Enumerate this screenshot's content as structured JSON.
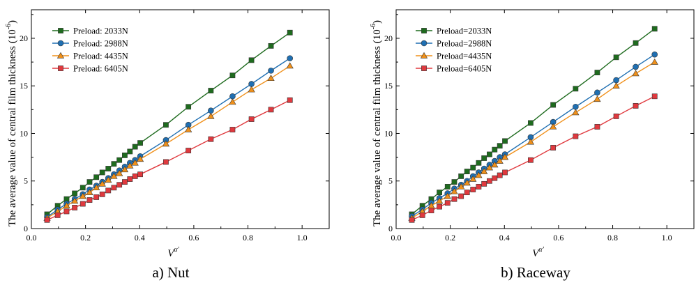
{
  "chart_data": [
    {
      "type": "line",
      "caption": "a) Nut",
      "xlabel": "V^α'",
      "ylabel": "The average  value of central film thickness (10^-6)",
      "xlim": [
        0.0,
        1.1
      ],
      "ylim": [
        0,
        23
      ],
      "xticks": [
        0.0,
        0.2,
        0.4,
        0.6,
        0.8,
        1.0
      ],
      "xtick_labels": [
        "0.0",
        "0.2",
        "0.4",
        "0.6",
        "0.8",
        "1.0"
      ],
      "yticks": [
        0,
        5,
        10,
        15,
        20
      ],
      "ytick_labels": [
        "0",
        "5",
        "10",
        "15",
        "20"
      ],
      "x": [
        0.058,
        0.097,
        0.13,
        0.16,
        0.19,
        0.215,
        0.24,
        0.262,
        0.284,
        0.305,
        0.325,
        0.345,
        0.364,
        0.383,
        0.402,
        0.497,
        0.58,
        0.663,
        0.743,
        0.813,
        0.885,
        0.955
      ],
      "series": [
        {
          "name": "Preload: 2033N",
          "color": "#1e6b1e",
          "marker": "square",
          "values": [
            1.5,
            2.4,
            3.1,
            3.7,
            4.3,
            4.9,
            5.4,
            5.9,
            6.3,
            6.8,
            7.2,
            7.7,
            8.1,
            8.6,
            9.0,
            10.9,
            12.8,
            14.5,
            16.1,
            17.7,
            19.2,
            20.6
          ]
        },
        {
          "name": "Preload: 2988N",
          "color": "#1f6fb2",
          "marker": "circle",
          "values": [
            1.2,
            2.0,
            2.6,
            3.1,
            3.6,
            4.1,
            4.5,
            4.9,
            5.3,
            5.7,
            6.1,
            6.5,
            6.9,
            7.2,
            7.6,
            9.3,
            10.9,
            12.4,
            13.9,
            15.2,
            16.6,
            17.9
          ]
        },
        {
          "name": "Preload: 4435N",
          "color": "#f0901a",
          "marker": "triangle",
          "values": [
            1.1,
            1.8,
            2.4,
            2.9,
            3.4,
            3.8,
            4.3,
            4.7,
            5.1,
            5.5,
            5.8,
            6.2,
            6.6,
            6.9,
            7.3,
            8.9,
            10.4,
            11.8,
            13.3,
            14.6,
            15.8,
            17.1
          ]
        },
        {
          "name": "Preload: 6405N",
          "color": "#e0393e",
          "marker": "square",
          "values": [
            0.9,
            1.4,
            1.8,
            2.2,
            2.6,
            3.0,
            3.3,
            3.6,
            4.0,
            4.3,
            4.6,
            4.9,
            5.2,
            5.5,
            5.7,
            7.0,
            8.2,
            9.4,
            10.4,
            11.5,
            12.5,
            13.5
          ]
        }
      ]
    },
    {
      "type": "line",
      "caption": "b) Raceway",
      "xlabel": "V^α'",
      "ylabel": "The average  value of central film thickness (10^-6)",
      "xlim": [
        0.0,
        1.1
      ],
      "ylim": [
        0,
        23
      ],
      "xticks": [
        0.0,
        0.2,
        0.4,
        0.6,
        0.8,
        1.0
      ],
      "xtick_labels": [
        "0.0",
        "0.2",
        "0.4",
        "0.6",
        "0.8",
        "1.0"
      ],
      "yticks": [
        0,
        5,
        10,
        15,
        20
      ],
      "ytick_labels": [
        "0",
        "5",
        "10",
        "15",
        "20"
      ],
      "x": [
        0.058,
        0.097,
        0.13,
        0.16,
        0.19,
        0.215,
        0.24,
        0.262,
        0.284,
        0.305,
        0.325,
        0.345,
        0.364,
        0.383,
        0.402,
        0.497,
        0.58,
        0.663,
        0.743,
        0.813,
        0.885,
        0.955
      ],
      "series": [
        {
          "name": "Preload=2033N",
          "color": "#1e6b1e",
          "marker": "square",
          "values": [
            1.5,
            2.4,
            3.1,
            3.8,
            4.4,
            4.9,
            5.5,
            6.0,
            6.4,
            6.9,
            7.4,
            7.8,
            8.3,
            8.7,
            9.2,
            11.1,
            13.0,
            14.7,
            16.4,
            18.0,
            19.5,
            21.0
          ]
        },
        {
          "name": "Preload=2988N",
          "color": "#1f6fb2",
          "marker": "circle",
          "values": [
            1.3,
            2.0,
            2.7,
            3.2,
            3.7,
            4.2,
            4.6,
            5.0,
            5.5,
            5.9,
            6.3,
            6.7,
            7.1,
            7.5,
            7.8,
            9.6,
            11.2,
            12.8,
            14.3,
            15.6,
            17.0,
            18.3
          ]
        },
        {
          "name": "Preload=4435N",
          "color": "#f0901a",
          "marker": "triangle",
          "values": [
            1.1,
            1.8,
            2.4,
            2.9,
            3.4,
            3.9,
            4.4,
            4.8,
            5.2,
            5.6,
            6.0,
            6.4,
            6.7,
            7.1,
            7.5,
            9.1,
            10.7,
            12.2,
            13.6,
            15.0,
            16.3,
            17.5
          ]
        },
        {
          "name": "Preload=6405N",
          "color": "#e0393e",
          "marker": "square",
          "values": [
            0.9,
            1.4,
            1.9,
            2.3,
            2.7,
            3.1,
            3.4,
            3.8,
            4.1,
            4.4,
            4.7,
            5.0,
            5.3,
            5.6,
            5.9,
            7.2,
            8.5,
            9.7,
            10.7,
            11.8,
            12.9,
            13.9
          ]
        }
      ]
    }
  ]
}
